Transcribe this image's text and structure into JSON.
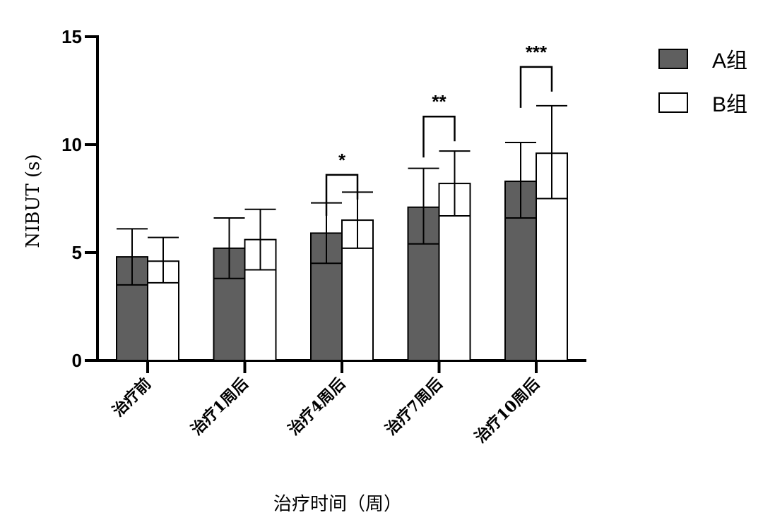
{
  "chart_data": {
    "type": "bar",
    "title": "",
    "xlabel": "治疗时间（周）",
    "ylabel": "NIBUT (s)",
    "ylim": [
      0,
      15
    ],
    "yticks": [
      "0",
      "5",
      "10",
      "15"
    ],
    "categories": [
      "治疗前",
      "治疗1周后",
      "治疗4周后",
      "治疗7周后",
      "治疗10周后"
    ],
    "series": [
      {
        "name": "A组",
        "color": "#5f5f5f",
        "values": [
          4.8,
          5.2,
          5.9,
          7.1,
          8.3
        ],
        "error_low": [
          3.5,
          3.8,
          4.5,
          5.4,
          6.6
        ],
        "error_high": [
          6.1,
          6.6,
          7.3,
          8.9,
          10.1
        ]
      },
      {
        "name": "B组",
        "color": "#ffffff",
        "values": [
          4.6,
          5.6,
          6.5,
          8.2,
          9.6
        ],
        "error_low": [
          3.6,
          4.2,
          5.2,
          6.7,
          7.5
        ],
        "error_high": [
          5.7,
          7.0,
          7.8,
          9.7,
          11.8
        ]
      }
    ],
    "significance": [
      {
        "category_index": 2,
        "label": "*",
        "level": 8.6
      },
      {
        "category_index": 3,
        "label": "**",
        "level": 11.3
      },
      {
        "category_index": 4,
        "label": "***",
        "level": 13.6
      }
    ],
    "legend": [
      {
        "label": "A组",
        "color": "#5f5f5f"
      },
      {
        "label": "B组",
        "color": "#ffffff"
      }
    ],
    "legend_position": "top-right",
    "grid": false
  }
}
